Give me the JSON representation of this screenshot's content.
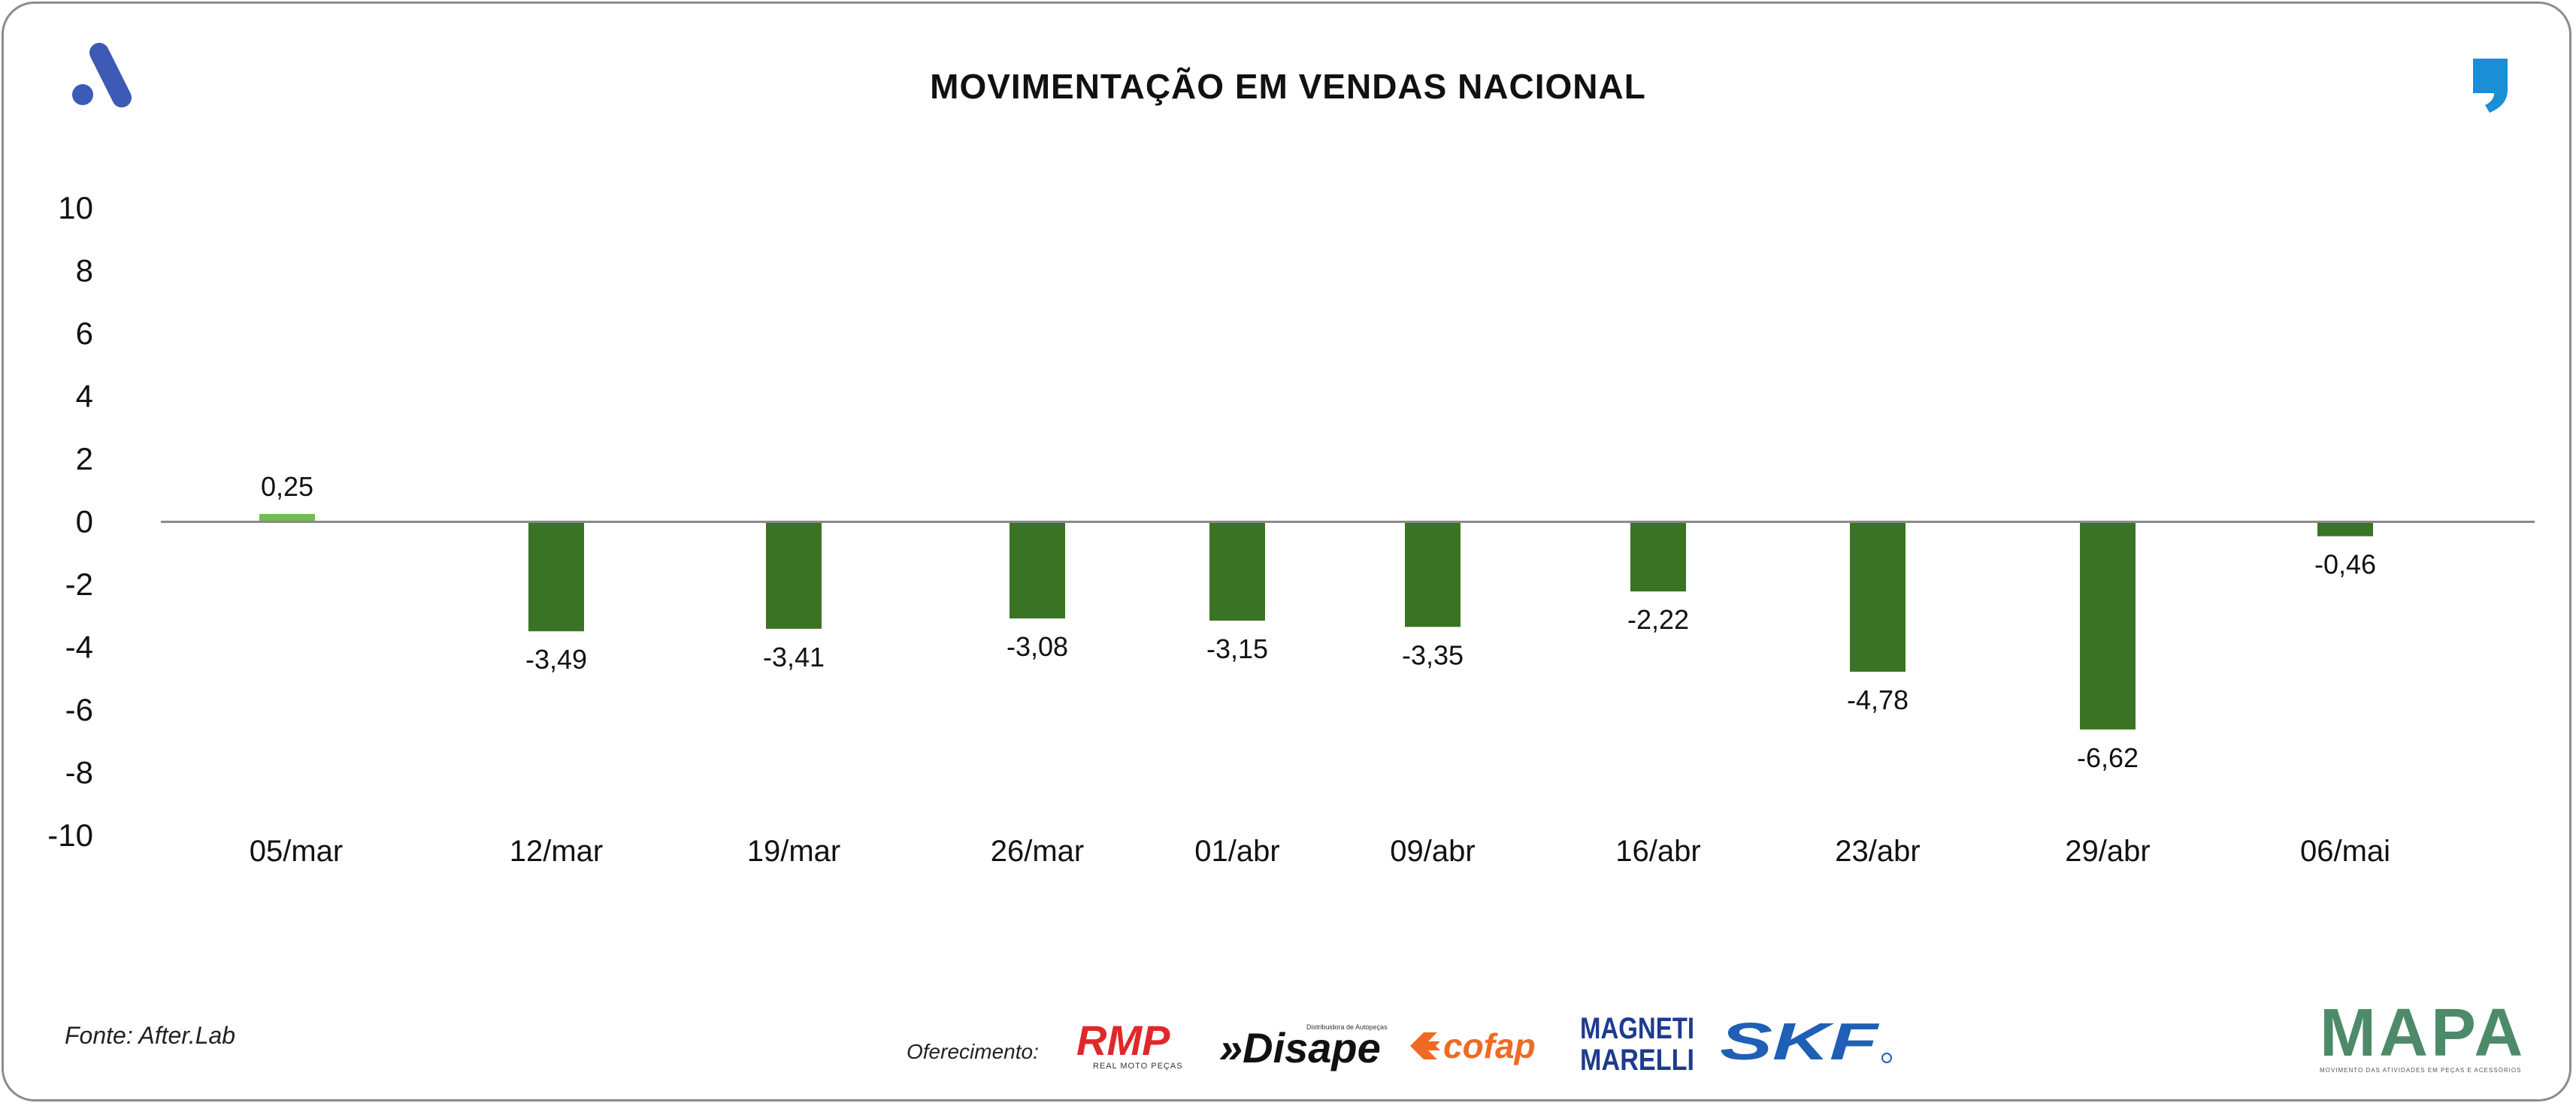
{
  "header": {
    "title": "MOVIMENTAÇÃO EM VENDAS NACIONAL",
    "logo_left_icon": "after-lab-a-icon",
    "logo_right_icon": "quote-comma-icon"
  },
  "chart_data": {
    "type": "bar",
    "categories": [
      "05/mar",
      "12/mar",
      "19/mar",
      "26/mar",
      "01/abr",
      "09/abr",
      "16/abr",
      "23/abr",
      "29/abr",
      "06/mai"
    ],
    "values": [
      0.25,
      -3.49,
      -3.41,
      -3.08,
      -3.15,
      -3.35,
      -2.22,
      -4.78,
      -6.62,
      -0.46
    ],
    "data_labels": [
      "0,25",
      "-3,49",
      "-3,41",
      "-3,08",
      "-3,15",
      "-3,35",
      "-2,22",
      "-4,78",
      "-6,62",
      "-0,46"
    ],
    "yticks": [
      10,
      8,
      6,
      4,
      2,
      0,
      -2,
      -4,
      -6,
      -8,
      -10
    ],
    "ylim": [
      -10,
      10
    ],
    "title": "MOVIMENTAÇÃO EM VENDAS NACIONAL",
    "xlabel": "",
    "ylabel": "",
    "grid": false,
    "legend": "none",
    "colors": {
      "positive": "#6fbe4f",
      "negative": "#3b7324",
      "zero_line": "#8a8a8a"
    }
  },
  "footer": {
    "source": "Fonte: After.Lab",
    "sponsor_label": "Oferecimento:",
    "sponsors": {
      "rmp": "RMP",
      "rmp_sub": "REAL MOTO PEÇAS",
      "disape": "»Disape",
      "disape_sub": "Distribuidora de Autopeças",
      "cofap": "cofap",
      "magneti_1": "MAGNETI",
      "magneti_2": "MARELLI",
      "skf": "SKF"
    },
    "mapa": "MAPA",
    "mapa_sub": "MOVIMENTO DAS ATIVIDADES EM PEÇAS E ACESSÓRIOS"
  },
  "colors": {
    "frame": "#8c8c8c",
    "logo_blue": "#3d5bb5",
    "quote_blue": "#1b8fd6",
    "rmp_red": "#e0282a",
    "cofap_orange": "#f06a22",
    "magneti_blue": "#1d3b8f",
    "skf_blue": "#1f5fb5"
  }
}
